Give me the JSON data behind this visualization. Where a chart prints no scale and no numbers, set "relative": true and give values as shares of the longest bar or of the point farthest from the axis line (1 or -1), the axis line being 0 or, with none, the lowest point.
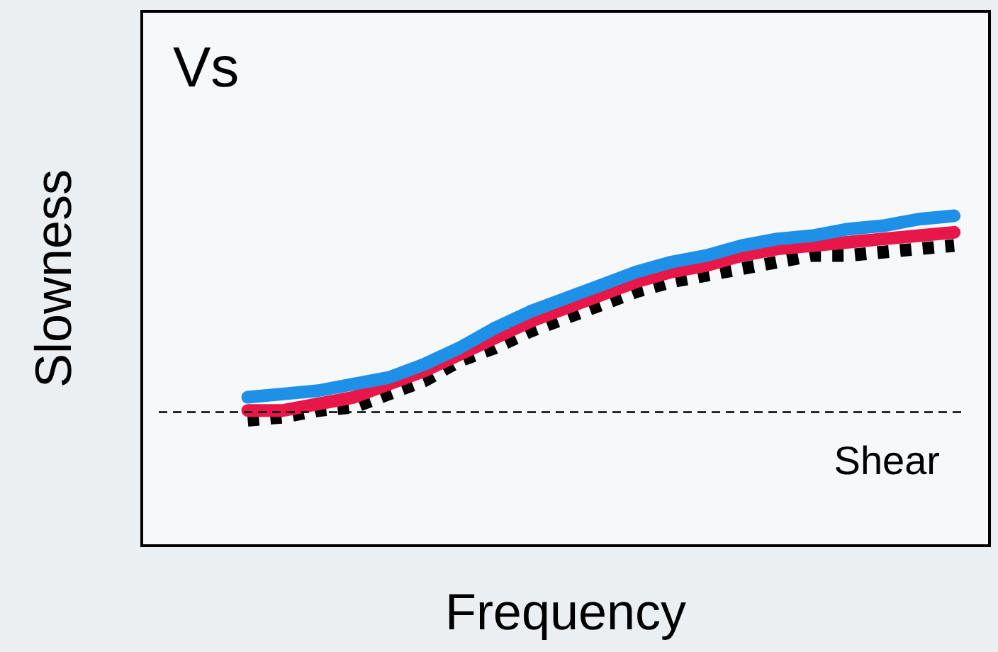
{
  "chart_data": {
    "type": "line",
    "title": "Vs",
    "xlabel": "Frequency",
    "ylabel": "Slowness",
    "relative": true,
    "legend": false,
    "marker": "none",
    "categories": [
      null,
      null,
      null,
      null,
      null,
      null,
      null,
      null,
      null,
      null,
      null,
      null,
      null,
      null,
      null,
      null,
      null,
      null,
      null,
      null,
      null,
      null,
      null,
      null,
      null
    ],
    "series": [
      {
        "color": "#1e90e8",
        "line_style": "solid",
        "values": [
          null,
          null,
          null,
          0.45,
          0.46,
          0.47,
          0.49,
          0.51,
          0.55,
          0.6,
          0.66,
          0.71,
          0.75,
          0.79,
          0.83,
          0.86,
          0.88,
          0.91,
          0.93,
          0.94,
          0.96,
          0.97,
          0.99,
          1,
          null
        ]
      },
      {
        "color": "#e8174a",
        "line_style": "solid",
        "values": [
          null,
          null,
          null,
          0.41,
          0.41,
          0.43,
          0.45,
          0.49,
          0.53,
          0.58,
          0.63,
          0.68,
          0.72,
          0.76,
          0.8,
          0.83,
          0.85,
          0.88,
          0.9,
          0.91,
          0.92,
          0.93,
          0.94,
          0.95,
          null
        ]
      },
      {
        "color": "#000000",
        "line_style": "dotted",
        "values": [
          null,
          null,
          null,
          0.38,
          0.39,
          0.41,
          0.42,
          0.46,
          0.5,
          0.56,
          0.6,
          0.65,
          0.69,
          0.73,
          0.77,
          0.8,
          0.82,
          0.84,
          0.86,
          0.88,
          0.88,
          0.89,
          0.9,
          0.91,
          null
        ]
      }
    ],
    "ref_lines": [
      {
        "axis": "y",
        "value": 0.405,
        "label": "Shear",
        "color": "#000000",
        "line_style": "dashed"
      }
    ]
  }
}
